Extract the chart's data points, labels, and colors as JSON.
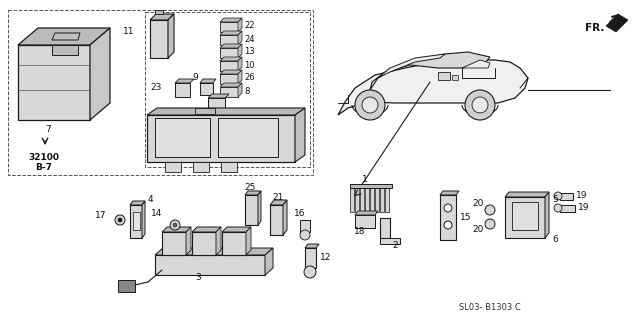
{
  "bg_color": "#ffffff",
  "fig_width": 6.4,
  "fig_height": 3.17,
  "dpi": 100,
  "footer_text": "SL03- B1303 C",
  "fr_label": "FR.",
  "line_color": "#1a1a1a",
  "text_color": "#111111",
  "gray_fill": "#d8d8d8",
  "dark_fill": "#888888",
  "mid_fill": "#bbbbbb"
}
